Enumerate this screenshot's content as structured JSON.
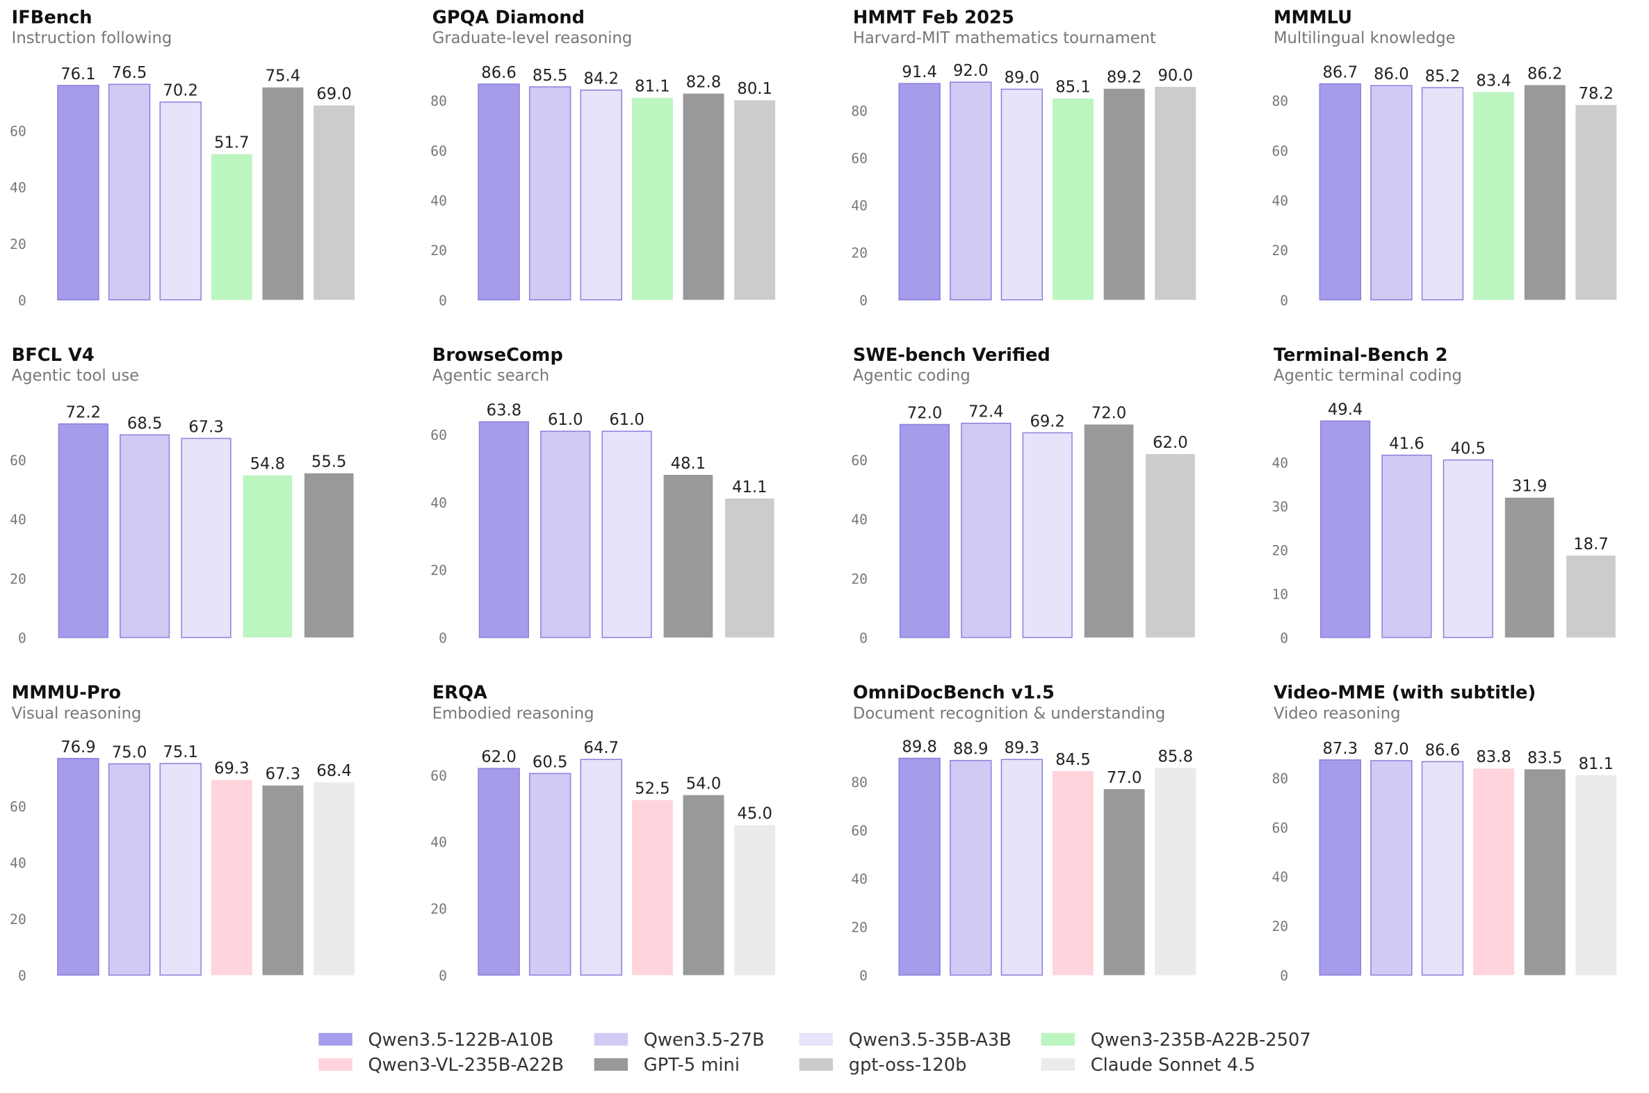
{
  "chart_data": [
    {
      "type": "bar",
      "title": "IFBench",
      "subtitle": "Instruction following",
      "values": [
        76.1,
        76.5,
        70.2,
        51.7,
        75.4,
        69.0
      ],
      "value_labels": [
        "76.1",
        "76.5",
        "70.2",
        "51.7",
        "75.4",
        "69.0"
      ],
      "colors": [
        "#a59ceb",
        "#d0caf5",
        "#e6e3fa",
        "#bdf5c0",
        "#999999",
        "#cccccc"
      ],
      "ylim": [
        0,
        84
      ],
      "yticks": [
        0,
        20,
        40,
        60
      ]
    },
    {
      "type": "bar",
      "title": "GPQA Diamond",
      "subtitle": "Graduate-level reasoning",
      "values": [
        86.6,
        85.5,
        84.2,
        81.1,
        82.8,
        80.1
      ],
      "value_labels": [
        "86.6",
        "85.5",
        "84.2",
        "81.1",
        "82.8",
        "80.1"
      ],
      "colors": [
        "#a59ceb",
        "#d0caf5",
        "#e6e3fa",
        "#bdf5c0",
        "#999999",
        "#cccccc"
      ],
      "ylim": [
        0,
        95
      ],
      "yticks": [
        0,
        20,
        40,
        60,
        80
      ]
    },
    {
      "type": "bar",
      "title": "HMMT Feb 2025",
      "subtitle": "Harvard-MIT mathematics tournament",
      "values": [
        91.4,
        92.0,
        89.0,
        85.1,
        89.2,
        90.0
      ],
      "value_labels": [
        "91.4",
        "92.0",
        "89.0",
        "85.1",
        "89.2",
        "90.0"
      ],
      "colors": [
        "#a59ceb",
        "#d0caf5",
        "#e6e3fa",
        "#bdf5c0",
        "#999999",
        "#cccccc"
      ],
      "ylim": [
        0,
        100
      ],
      "yticks": [
        0,
        20,
        40,
        60,
        80
      ]
    },
    {
      "type": "bar",
      "title": "MMMLU",
      "subtitle": "Multilingual knowledge",
      "values": [
        86.7,
        86.0,
        85.2,
        83.4,
        86.2,
        78.2
      ],
      "value_labels": [
        "86.7",
        "86.0",
        "85.2",
        "83.4",
        "86.2",
        "78.2"
      ],
      "colors": [
        "#a59ceb",
        "#d0caf5",
        "#e6e3fa",
        "#bdf5c0",
        "#999999",
        "#cccccc"
      ],
      "ylim": [
        0,
        95
      ],
      "yticks": [
        0,
        20,
        40,
        60,
        80
      ]
    },
    {
      "type": "bar",
      "title": "BFCL V4",
      "subtitle": "Agentic tool use",
      "values": [
        72.2,
        68.5,
        67.3,
        54.8,
        55.5
      ],
      "value_labels": [
        "72.2",
        "68.5",
        "67.3",
        "54.8",
        "55.5"
      ],
      "colors": [
        "#a59ceb",
        "#d0caf5",
        "#e6e3fa",
        "#bdf5c0",
        "#999999"
      ],
      "ylim": [
        0,
        80
      ],
      "yticks": [
        0,
        20,
        40,
        60
      ]
    },
    {
      "type": "bar",
      "title": "BrowseComp",
      "subtitle": "Agentic search",
      "values": [
        63.8,
        61.0,
        61.0,
        48.1,
        41.1
      ],
      "value_labels": [
        "63.8",
        "61.0",
        "61.0",
        "48.1",
        "41.1"
      ],
      "colors": [
        "#a59ceb",
        "#d0caf5",
        "#e6e3fa",
        "#999999",
        "#cccccc"
      ],
      "ylim": [
        0,
        70
      ],
      "yticks": [
        0,
        20,
        40,
        60
      ]
    },
    {
      "type": "bar",
      "title": "SWE-bench Verified",
      "subtitle": "Agentic coding",
      "values": [
        72.0,
        72.4,
        69.2,
        72.0,
        62.0
      ],
      "value_labels": [
        "72.0",
        "72.4",
        "69.2",
        "72.0",
        "62.0"
      ],
      "colors": [
        "#a59ceb",
        "#d0caf5",
        "#e6e3fa",
        "#999999",
        "#cccccc"
      ],
      "ylim": [
        0,
        80
      ],
      "yticks": [
        0,
        20,
        40,
        60
      ]
    },
    {
      "type": "bar",
      "title": "Terminal-Bench 2",
      "subtitle": "Agentic terminal coding",
      "values": [
        49.4,
        41.6,
        40.5,
        31.9,
        18.7
      ],
      "value_labels": [
        "49.4",
        "41.6",
        "40.5",
        "31.9",
        "18.7"
      ],
      "colors": [
        "#a59ceb",
        "#d0caf5",
        "#e6e3fa",
        "#999999",
        "#cccccc"
      ],
      "ylim": [
        0,
        54
      ],
      "yticks": [
        0,
        10,
        20,
        30,
        40
      ]
    },
    {
      "type": "bar",
      "title": "MMMU-Pro",
      "subtitle": "Visual reasoning",
      "values": [
        76.9,
        75.0,
        75.1,
        69.3,
        67.3,
        68.4
      ],
      "value_labels": [
        "76.9",
        "75.0",
        "75.1",
        "69.3",
        "67.3",
        "68.4"
      ],
      "colors": [
        "#a59ceb",
        "#d0caf5",
        "#e6e3fa",
        "#ffd4dc",
        "#999999",
        "#ebebeb"
      ],
      "ylim": [
        0,
        84
      ],
      "yticks": [
        0,
        20,
        40,
        60
      ]
    },
    {
      "type": "bar",
      "title": "ERQA",
      "subtitle": "Embodied reasoning",
      "values": [
        62.0,
        60.5,
        64.7,
        52.5,
        54.0,
        45.0
      ],
      "value_labels": [
        "62.0",
        "60.5",
        "64.7",
        "52.5",
        "54.0",
        "45.0"
      ],
      "colors": [
        "#a59ceb",
        "#d0caf5",
        "#e6e3fa",
        "#ffd4dc",
        "#999999",
        "#ebebeb"
      ],
      "ylim": [
        0,
        71
      ],
      "yticks": [
        0,
        20,
        40,
        60
      ]
    },
    {
      "type": "bar",
      "title": "OmniDocBench v1.5",
      "subtitle": "Document recognition & understanding",
      "values": [
        89.8,
        88.9,
        89.3,
        84.5,
        77.0,
        85.8
      ],
      "value_labels": [
        "89.8",
        "88.9",
        "89.3",
        "84.5",
        "77.0",
        "85.8"
      ],
      "colors": [
        "#a59ceb",
        "#d0caf5",
        "#e6e3fa",
        "#ffd4dc",
        "#999999",
        "#ebebeb"
      ],
      "ylim": [
        0,
        98
      ],
      "yticks": [
        0,
        20,
        40,
        60,
        80
      ]
    },
    {
      "type": "bar",
      "title": "Video-MME (with subtitle)",
      "subtitle": "Video reasoning",
      "values": [
        87.3,
        87.0,
        86.6,
        83.8,
        83.5,
        81.1
      ],
      "value_labels": [
        "87.3",
        "87.0",
        "86.6",
        "83.8",
        "83.5",
        "81.1"
      ],
      "colors": [
        "#a59ceb",
        "#d0caf5",
        "#e6e3fa",
        "#ffd4dc",
        "#999999",
        "#ebebeb"
      ],
      "ylim": [
        0,
        96
      ],
      "yticks": [
        0,
        20,
        40,
        60,
        80
      ]
    }
  ],
  "legend": [
    {
      "name": "Qwen3.5-122B-A10B",
      "color": "#a59ceb"
    },
    {
      "name": "Qwen3.5-27B",
      "color": "#d0caf5"
    },
    {
      "name": "Qwen3.5-35B-A3B",
      "color": "#e6e3fa"
    },
    {
      "name": "Qwen3-235B-A22B-2507",
      "color": "#bdf5c0"
    },
    {
      "name": "Qwen3-VL-235B-A22B",
      "color": "#ffd4dc"
    },
    {
      "name": "GPT-5 mini",
      "color": "#999999"
    },
    {
      "name": "gpt-oss-120b",
      "color": "#cccccc"
    },
    {
      "name": "Claude Sonnet 4.5",
      "color": "#ebebeb"
    }
  ]
}
